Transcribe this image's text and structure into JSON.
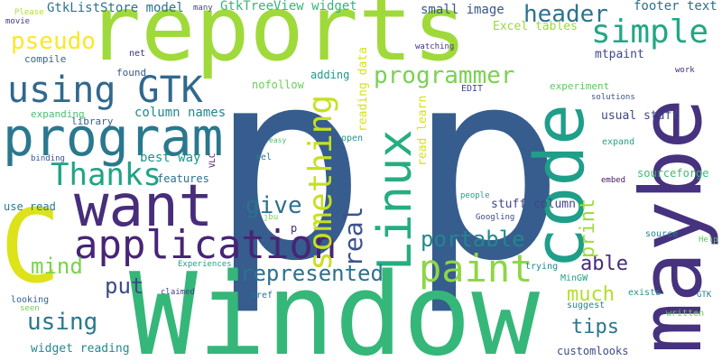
{
  "words": [
    {
      "text": "p",
      "color": "#365d8d"
    },
    {
      "text": "p",
      "color": "#365d8d"
    },
    {
      "text": "Window",
      "color": "#35b779"
    },
    {
      "text": "reports",
      "color": "#9fda3a"
    },
    {
      "text": "code",
      "color": "#1f9e89"
    },
    {
      "text": "maybe",
      "color": "#46327e"
    },
    {
      "text": "C",
      "color": "#dde318"
    },
    {
      "text": "program",
      "color": "#2a788e"
    },
    {
      "text": "want",
      "color": "#472d7b"
    },
    {
      "text": "using GTK",
      "color": "#31688e"
    },
    {
      "text": "Linux",
      "color": "#26ad81"
    },
    {
      "text": "application",
      "color": "#482576"
    },
    {
      "text": "something",
      "color": "#c8e020"
    },
    {
      "text": "paint",
      "color": "#8ed645"
    },
    {
      "text": "simple",
      "color": "#22a785"
    },
    {
      "text": "Thanks",
      "color": "#20a386"
    },
    {
      "text": "pseudo",
      "color": "#fde725"
    },
    {
      "text": "header",
      "color": "#2c738e"
    },
    {
      "text": "programmer",
      "color": "#7ad151"
    },
    {
      "text": "represented",
      "color": "#2c718e"
    },
    {
      "text": "give",
      "color": "#2d708e"
    },
    {
      "text": "portable",
      "color": "#24868e"
    },
    {
      "text": "real",
      "color": "#3b528b"
    },
    {
      "text": "mind",
      "color": "#7ad151"
    },
    {
      "text": "using",
      "color": "#2a788e"
    },
    {
      "text": "much",
      "color": "#b5de2b"
    },
    {
      "text": "put",
      "color": "#3e4989"
    },
    {
      "text": "able",
      "color": "#472c7a"
    },
    {
      "text": "tips",
      "color": "#2a768e"
    },
    {
      "text": "print",
      "color": "#a0da39"
    },
    {
      "text": "GtkListStore model",
      "color": "#2c728e"
    },
    {
      "text": "GtkTreeView widget",
      "color": "#35b779"
    },
    {
      "text": "small image",
      "color": "#39568c"
    },
    {
      "text": "footer text",
      "color": "#2d708e"
    },
    {
      "text": "Excel tables",
      "color": "#9bd93c"
    },
    {
      "text": "mtpaint",
      "color": "#404688"
    },
    {
      "text": "column names",
      "color": "#24868e"
    },
    {
      "text": "best way",
      "color": "#1f948c"
    },
    {
      "text": "reading data",
      "color": "#d8e219"
    },
    {
      "text": "read learn",
      "color": "#d8e219"
    },
    {
      "text": "usual stuff",
      "color": "#3f4788"
    },
    {
      "text": "stuff column",
      "color": "#414487"
    },
    {
      "text": "widget reading",
      "color": "#23898e"
    },
    {
      "text": "customlooks",
      "color": "#3e4a89"
    },
    {
      "text": "sourceforge",
      "color": "#3fbc73"
    },
    {
      "text": "nofollow",
      "color": "#6ccd5a"
    },
    {
      "text": "experiment",
      "color": "#5ec962"
    },
    {
      "text": "expanding",
      "color": "#4ac16d"
    },
    {
      "text": "compile",
      "color": "#31688e"
    },
    {
      "text": "library",
      "color": "#355f8d"
    },
    {
      "text": "features",
      "color": "#2e6f8e"
    },
    {
      "text": "use read",
      "color": "#287c8e"
    },
    {
      "text": "adding",
      "color": "#1f9a8a"
    },
    {
      "text": "found",
      "color": "#375a8c"
    },
    {
      "text": "net",
      "color": "#46327e"
    },
    {
      "text": "watching",
      "color": "#472f7d"
    },
    {
      "text": "EDIT",
      "color": "#3e4989"
    },
    {
      "text": "open",
      "color": "#1e9c89"
    },
    {
      "text": "expand",
      "color": "#20a386"
    },
    {
      "text": "embed",
      "color": "#48186a"
    },
    {
      "text": "source",
      "color": "#24868e"
    },
    {
      "text": "written",
      "color": "#6ccd5a"
    },
    {
      "text": "suggest",
      "color": "#24878e"
    },
    {
      "text": "exists",
      "color": "#1f958b"
    },
    {
      "text": "trying",
      "color": "#25848e"
    },
    {
      "text": "MinGW",
      "color": "#1fa188"
    },
    {
      "text": "looking",
      "color": "#355e8d"
    },
    {
      "text": "href",
      "color": "#2c728e"
    },
    {
      "text": "rel",
      "color": "#2a788e"
    },
    {
      "text": "binding",
      "color": "#3b528b"
    },
    {
      "text": "Please",
      "color": "#b5de2b"
    },
    {
      "text": "movie",
      "color": "#443983"
    },
    {
      "text": "many",
      "color": "#3f4788"
    },
    {
      "text": "work",
      "color": "#472a7a"
    },
    {
      "text": "solutions",
      "color": "#3b528b"
    },
    {
      "text": "Help",
      "color": "#5ec962"
    },
    {
      "text": "GTK",
      "color": "#287c8e"
    },
    {
      "text": "easy",
      "color": "#4ac16d"
    },
    {
      "text": "VLC",
      "color": "#471164"
    },
    {
      "text": "jbu",
      "color": "#75d054"
    },
    {
      "text": "people",
      "color": "#1fa088"
    },
    {
      "text": "Googling",
      "color": "#3e4989"
    },
    {
      "text": "Experiences",
      "color": "#1fa188"
    },
    {
      "text": "claimed",
      "color": "#433e85"
    },
    {
      "text": "seen",
      "color": "#6ccd5a"
    },
    {
      "text": "p",
      "color": "#482878"
    }
  ]
}
